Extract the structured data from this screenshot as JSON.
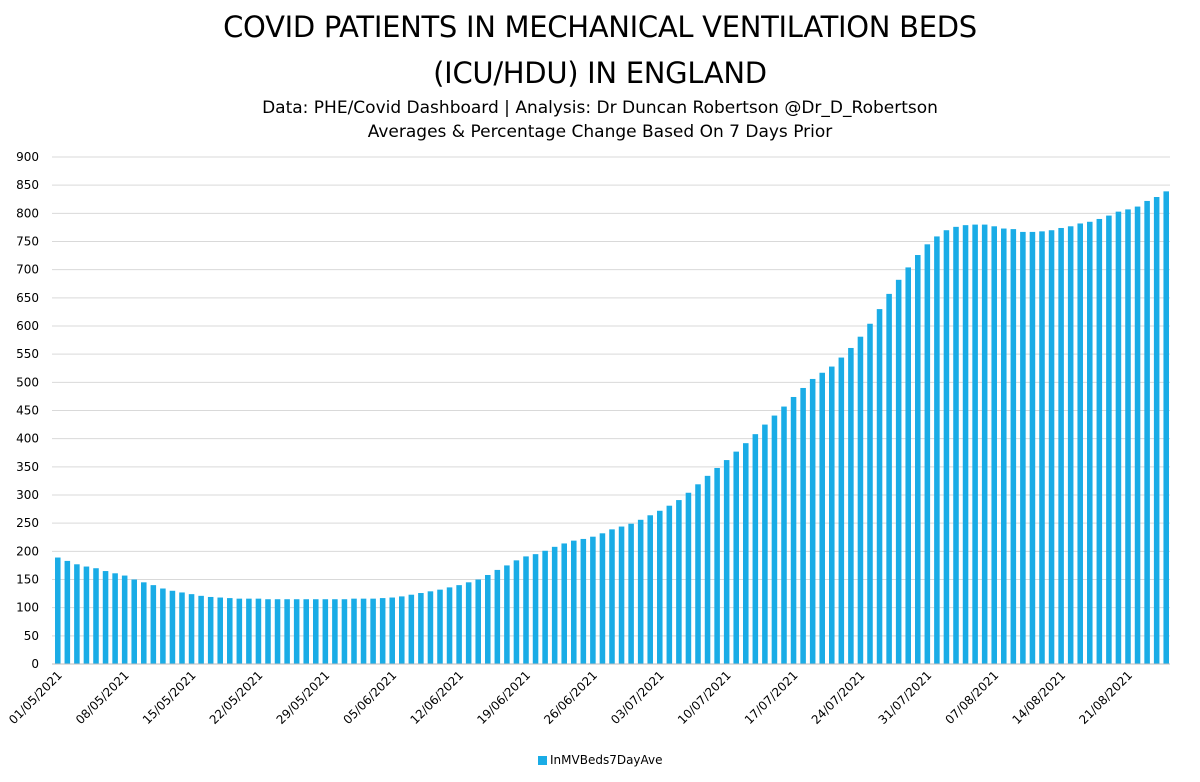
{
  "header": {
    "title_line1": "COVID PATIENTS IN MECHANICAL VENTILATION BEDS",
    "title_line2": "(ICU/HDU) IN ENGLAND",
    "subtitle_line1": "Data: PHE/Covid Dashboard | Analysis: Dr Duncan Robertson @Dr_D_Robertson",
    "subtitle_line2": "Averages & Percentage Change Based On 7 Days Prior"
  },
  "chart_data": {
    "type": "bar",
    "title": "COVID PATIENTS IN MECHANICAL VENTILATION BEDS (ICU/HDU) IN ENGLAND",
    "xlabel": "",
    "ylabel": "",
    "ylim": [
      0,
      900
    ],
    "yticks": [
      0,
      50,
      100,
      150,
      200,
      250,
      300,
      350,
      400,
      450,
      500,
      550,
      600,
      650,
      700,
      750,
      800,
      850,
      900
    ],
    "grid": true,
    "legend": "bottom-center",
    "bar_color": "#1AACE6",
    "start_date": "01/05/2021",
    "xtick_labels": [
      "01/05/2021",
      "08/05/2021",
      "15/05/2021",
      "22/05/2021",
      "29/05/2021",
      "05/06/2021",
      "12/06/2021",
      "19/06/2021",
      "26/06/2021",
      "03/07/2021",
      "10/07/2021",
      "17/07/2021",
      "24/07/2021",
      "31/07/2021",
      "07/08/2021",
      "14/08/2021",
      "21/08/2021"
    ],
    "series": [
      {
        "name": "InMVBeds7DayAve",
        "values": [
          189,
          183,
          177,
          173,
          170,
          165,
          161,
          157,
          150,
          145,
          140,
          134,
          130,
          127,
          124,
          121,
          119,
          118,
          117,
          116,
          116,
          116,
          115,
          115,
          115,
          115,
          115,
          115,
          115,
          115,
          115,
          116,
          116,
          116,
          117,
          118,
          120,
          123,
          126,
          129,
          132,
          136,
          140,
          145,
          150,
          158,
          167,
          175,
          184,
          191,
          195,
          201,
          208,
          214,
          219,
          222,
          226,
          232,
          239,
          244,
          249,
          256,
          264,
          272,
          281,
          291,
          304,
          319,
          334,
          348,
          362,
          377,
          392,
          408,
          425,
          441,
          457,
          474,
          490,
          506,
          517,
          528,
          544,
          561,
          581,
          604,
          630,
          657,
          682,
          704,
          726,
          745,
          759,
          770,
          776,
          779,
          780,
          780,
          777,
          773,
          772,
          767,
          767,
          768,
          770,
          774,
          777,
          782,
          785,
          790,
          796,
          803,
          807,
          812,
          822,
          829,
          839
        ]
      }
    ]
  }
}
